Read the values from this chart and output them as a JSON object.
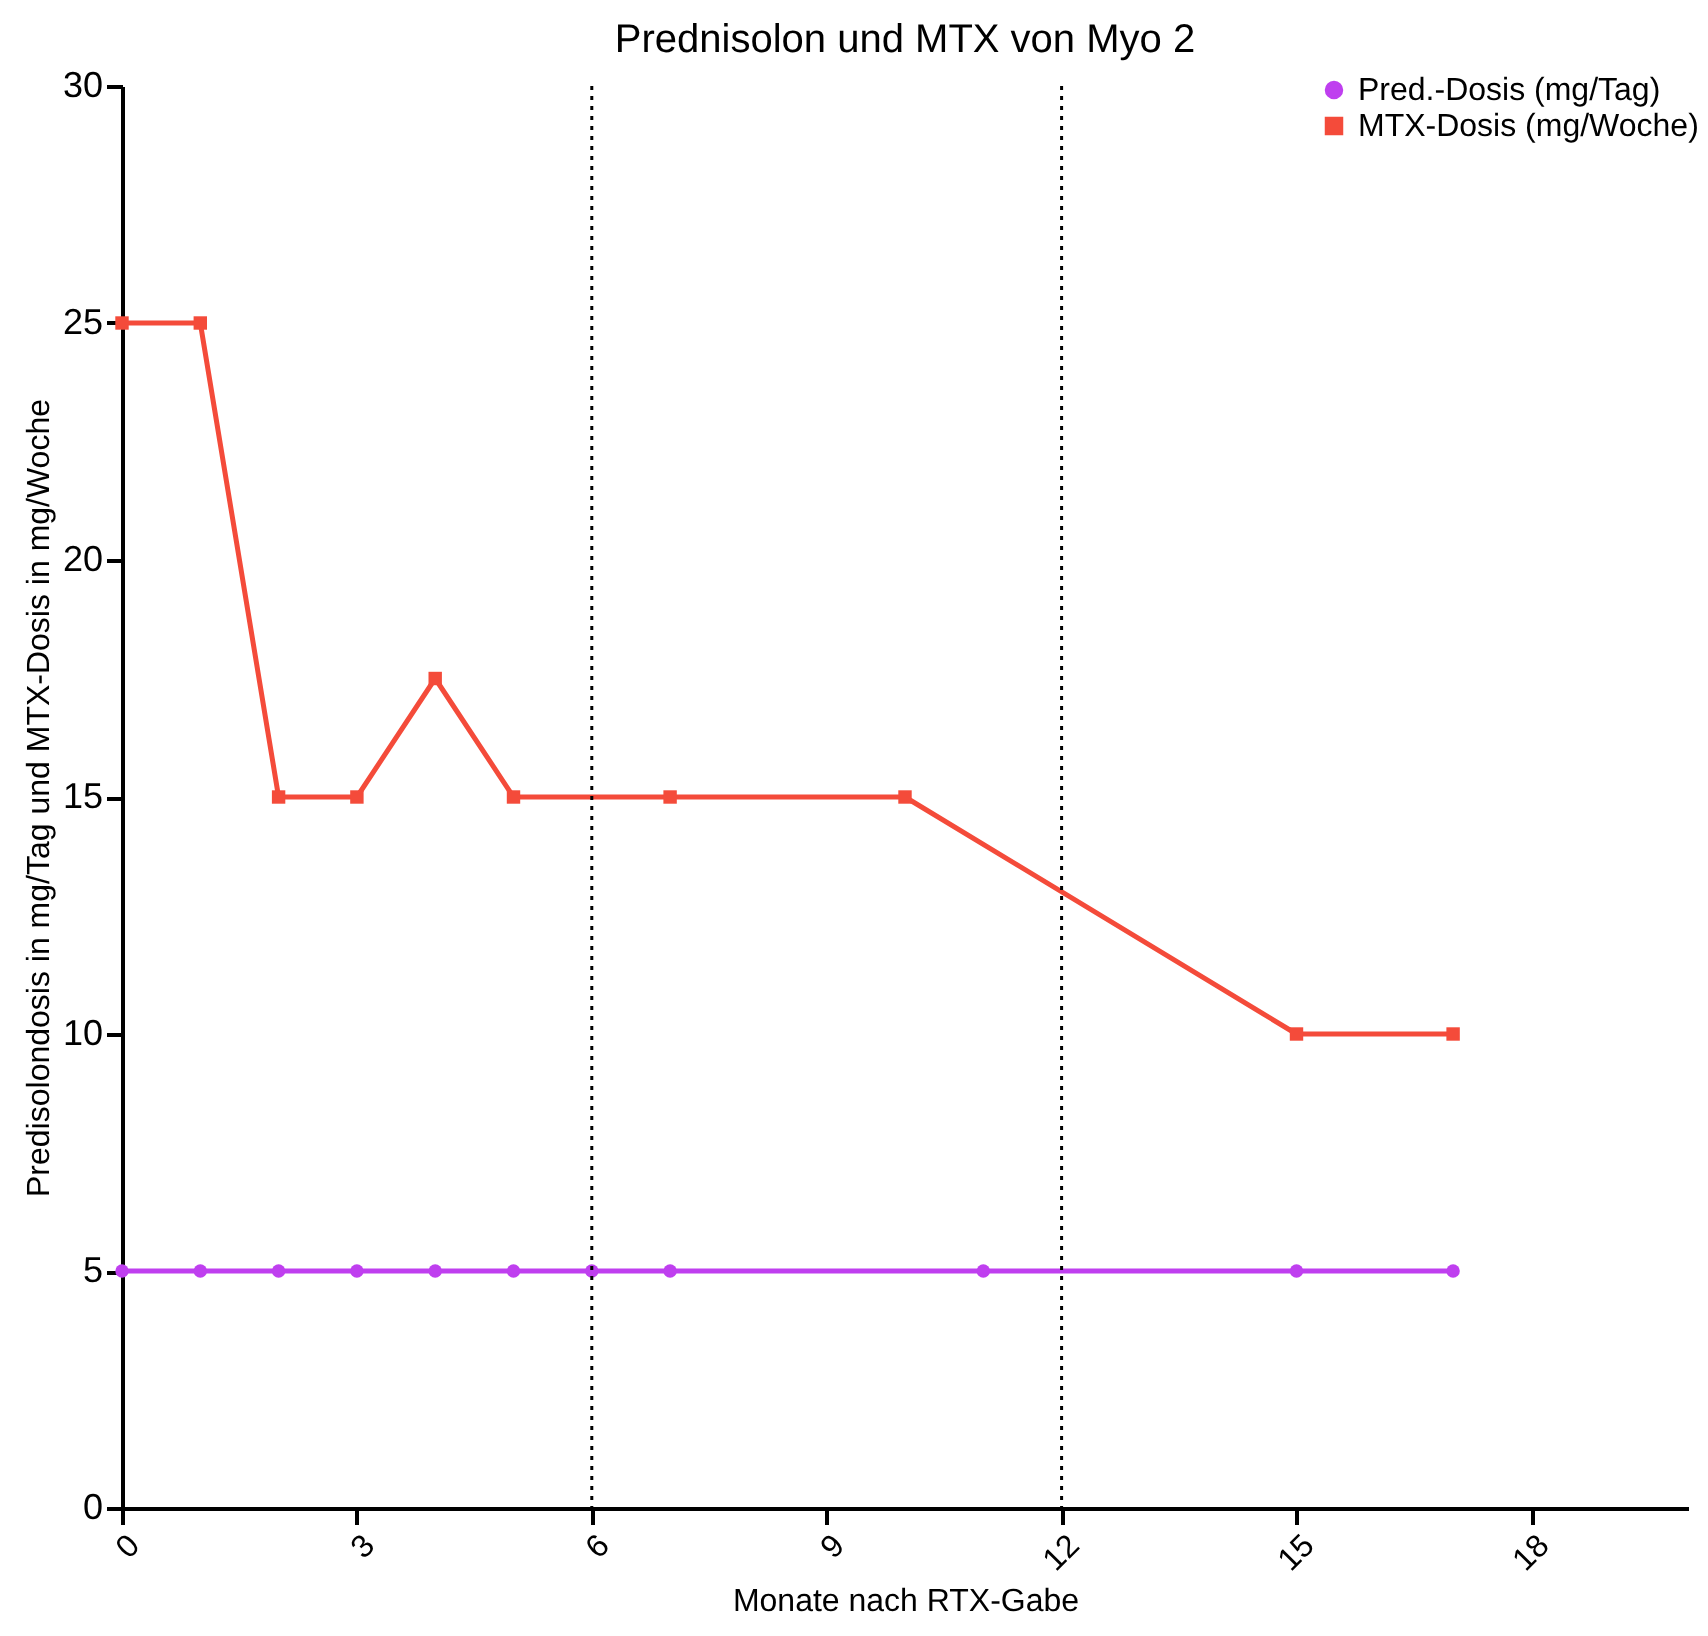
{
  "chart_data": {
    "type": "line",
    "title": "Prednisolon und MTX von Myo 2",
    "xlabel": "Monate nach RTX-Gabe",
    "ylabel": "Predisolondosis in mg/Tag und MTX-Dosis in mg/Woche",
    "xlim": [
      0,
      20
    ],
    "xticks": [
      0,
      3,
      6,
      9,
      12,
      15,
      18
    ],
    "ylim": [
      0,
      30
    ],
    "yticks": [
      0,
      5,
      10,
      15,
      20,
      25,
      30
    ],
    "grid": false,
    "legend": "top right",
    "line_style": "solid",
    "series": [
      {
        "name": "Pred.-Dosis (mg/Tag)",
        "color": "#bf3fef",
        "marker": "circle",
        "x": [
          0,
          1,
          2,
          3,
          4,
          5,
          6,
          7,
          11,
          15,
          17
        ],
        "values": [
          5,
          5,
          5,
          5,
          5,
          5,
          5,
          5,
          5,
          5,
          5
        ]
      },
      {
        "name": "MTX-Dosis (mg/Woche)",
        "color": "#f44b3a",
        "marker": "square",
        "x": [
          0,
          1,
          2,
          3,
          4,
          5,
          7,
          10,
          15,
          17
        ],
        "values": [
          25,
          25,
          15,
          15,
          17.5,
          15,
          15,
          15,
          10,
          10
        ]
      }
    ],
    "ref_lines": [
      {
        "axis": "x",
        "value": 6,
        "color": "#000000",
        "line_style": "dotted"
      },
      {
        "axis": "x",
        "value": 12,
        "color": "#000000",
        "line_style": "dotted"
      }
    ]
  }
}
